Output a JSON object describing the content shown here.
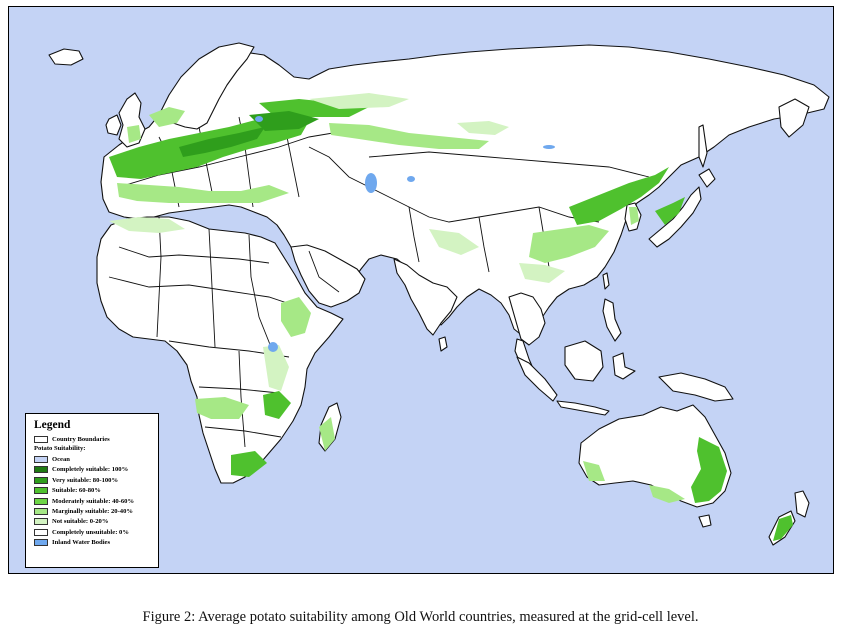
{
  "colors": {
    "ocean": "#c4d3f5",
    "country_boundaries": "#ffffff",
    "completely_suitable": "#1f7a12",
    "very_suitable": "#2f9e1c",
    "suitable": "#4fc12e",
    "moderately_suitable": "#6ed646",
    "marginally_suitable": "#a6e886",
    "not_suitable": "#d3f3c2",
    "completely_unsuitable": "#ffffff",
    "inland_water": "#6fa8ee"
  },
  "legend": {
    "title": "Legend",
    "boundaries_label": "Country Boundaries",
    "suitability_heading": "Potato Suitability:",
    "items": [
      {
        "label": "Ocean",
        "color": "#c4d3f5"
      },
      {
        "label": "Completely suitable: 100%",
        "color": "#1f7a12"
      },
      {
        "label": "Very suitable: 80-100%",
        "color": "#2f9e1c"
      },
      {
        "label": "Suitable: 60-80%",
        "color": "#4fc12e"
      },
      {
        "label": "Moderately suitable: 40-60%",
        "color": "#6ed646"
      },
      {
        "label": "Marginally suitable: 20-40%",
        "color": "#a6e886"
      },
      {
        "label": "Not suitable: 0-20%",
        "color": "#d3f3c2"
      },
      {
        "label": "Completely unsuitable: 0%",
        "color": "#ffffff"
      },
      {
        "label": "Inland Water Bodies",
        "color": "#6fa8ee"
      }
    ]
  },
  "caption": "Figure 2:  Average potato suitability among Old World countries, measured at the grid-cell level."
}
